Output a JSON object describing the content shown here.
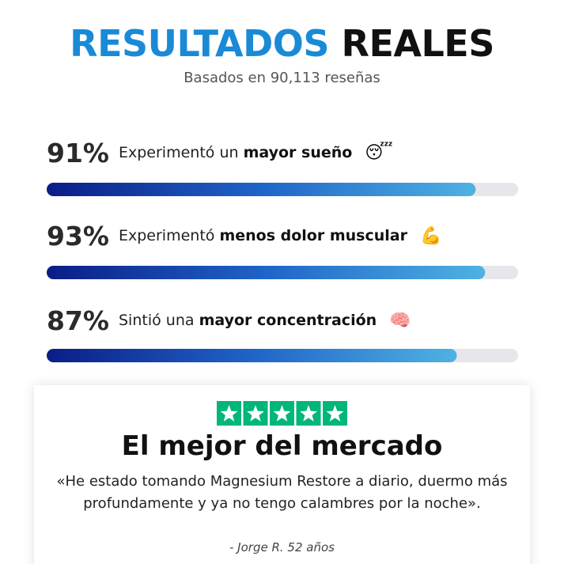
{
  "header": {
    "title_blue": "RESULTADOS",
    "title_black": "REALES",
    "subtitle": "Basados en 90,113 reseñas"
  },
  "stats": [
    {
      "value": 91,
      "label": "91%",
      "text": "Experimentó un",
      "bold": "mayor sueño",
      "emoji": "😴"
    },
    {
      "value": 93,
      "label": "93%",
      "text": "Experimentó",
      "bold": "menos dolor muscular",
      "emoji": "💪"
    },
    {
      "value": 87,
      "label": "87%",
      "text": "Sintió una",
      "bold": "mayor concentración",
      "emoji": "🧠"
    }
  ],
  "review": {
    "stars": 5,
    "heading": "El mejor del mercado",
    "quote": "«He estado tomando Magnesium Restore a diario, duermo más profundamente y ya no tengo calambres por la noche».",
    "author": "- Jorge R. 52 años"
  }
}
